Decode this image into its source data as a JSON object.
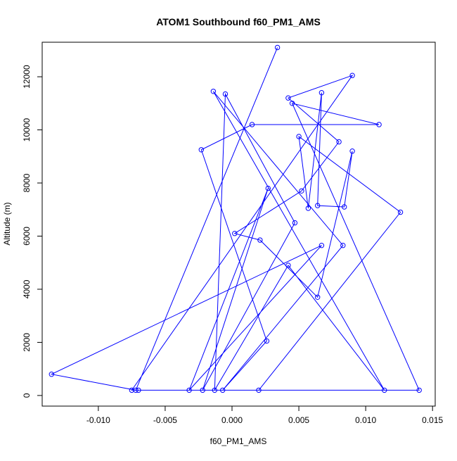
{
  "chart_data": {
    "type": "line",
    "title": "ATOM1 Southbound f60_PM1_AMS",
    "xlabel": "f60_PM1_AMS",
    "ylabel": "Altitude (m)",
    "xlim": [
      -0.0142,
      0.0152
    ],
    "ylim": [
      -400,
      13300
    ],
    "x_ticks": [
      -0.01,
      -0.005,
      0.0,
      0.005,
      0.01,
      0.015
    ],
    "x_tick_labels": [
      "-0.010",
      "-0.005",
      "0.000",
      "0.005",
      "0.010",
      "0.015"
    ],
    "y_ticks": [
      0,
      2000,
      4000,
      6000,
      8000,
      10000,
      12000
    ],
    "y_tick_labels": [
      "0",
      "2000",
      "4000",
      "6000",
      "8000",
      "10000",
      "12000"
    ],
    "grid": false,
    "series_color": "#0000ff",
    "markers": "open-circle",
    "series": [
      {
        "x": [
          0.0034,
          -0.0072,
          -0.0135,
          0.0067,
          -0.0032,
          0.0027,
          -0.0022,
          0.0047,
          -0.0005,
          -0.0013,
          0.0042,
          0.0114,
          -0.0014,
          0.0083,
          -0.0007,
          0.0026,
          -0.0023,
          0.0015,
          0.011,
          0.0045,
          0.014,
          -0.0075,
          0.009,
          0.0042,
          0.008,
          0.0052,
          0.0002,
          0.0021,
          0.0064,
          0.009,
          0.0084,
          0.0064,
          0.0067,
          0.0057,
          0.005,
          0.0126,
          0.002,
          -0.007
        ],
        "y": [
          13100,
          200,
          800,
          5650,
          200,
          7800,
          200,
          6500,
          11350,
          200,
          4900,
          200,
          11450,
          5650,
          200,
          2050,
          9250,
          10200,
          10200,
          11000,
          200,
          200,
          12050,
          11200,
          9550,
          7700,
          6100,
          5850,
          3700,
          9200,
          7100,
          7150,
          11400,
          7050,
          9750,
          6900,
          200,
          200
        ]
      }
    ]
  }
}
